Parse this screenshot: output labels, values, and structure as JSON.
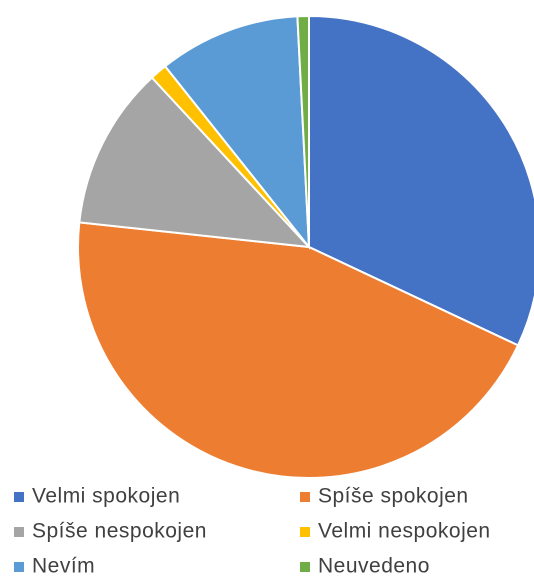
{
  "chart_data": {
    "type": "pie",
    "categories": [
      "Velmi spokojen",
      "Spíše spokojen",
      "Spíše nespokojen",
      "Velmi nespokojen",
      "Nevím",
      "Neuvedeno"
    ],
    "values": [
      32,
      44.7,
      11.4,
      1.2,
      9.9,
      0.8
    ],
    "colors": [
      "#4472c4",
      "#ed7d31",
      "#a5a5a5",
      "#ffc000",
      "#5b9bd5",
      "#70ad47"
    ],
    "legend": "bottom"
  }
}
